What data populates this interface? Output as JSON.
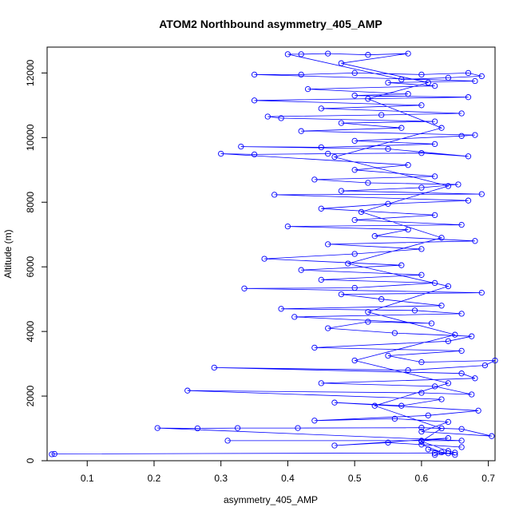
{
  "chart_data": {
    "type": "line",
    "title": "ATOM2 Northbound asymmetry_405_AMP",
    "xlabel": "asymmetry_405_AMP",
    "ylabel": "Altitude (m)",
    "xlim": [
      0.04,
      0.71
    ],
    "ylim": [
      0,
      12800
    ],
    "x_ticks": [
      0.1,
      0.2,
      0.3,
      0.4,
      0.5,
      0.6,
      0.7
    ],
    "x_tick_labels": [
      "0.1",
      "0.2",
      "0.3",
      "0.4",
      "0.5",
      "0.6",
      "0.7"
    ],
    "y_ticks": [
      0,
      2000,
      4000,
      6000,
      8000,
      10000,
      12000
    ],
    "y_tick_labels": [
      "0",
      "2000",
      "4000",
      "6000",
      "8000",
      "10000",
      "12000"
    ],
    "grid": false,
    "marker": "open-circle",
    "line_color": "#0000ff",
    "series": [
      {
        "points": [
          [
            0.047,
            200
          ],
          [
            0.051,
            210
          ],
          [
            0.62,
            240
          ],
          [
            0.64,
            230
          ],
          [
            0.65,
            180
          ],
          [
            0.61,
            350
          ],
          [
            0.63,
            260
          ],
          [
            0.6,
            500
          ],
          [
            0.66,
            420
          ],
          [
            0.55,
            560
          ],
          [
            0.47,
            470
          ],
          [
            0.64,
            700
          ],
          [
            0.6,
            620
          ],
          [
            0.31,
            620
          ],
          [
            0.66,
            620
          ],
          [
            0.205,
            1010
          ],
          [
            0.265,
            1000
          ],
          [
            0.325,
            1010
          ],
          [
            0.415,
            1010
          ],
          [
            0.6,
            1020
          ],
          [
            0.66,
            980
          ],
          [
            0.705,
            760
          ],
          [
            0.6,
            900
          ],
          [
            0.64,
            1200
          ],
          [
            0.56,
            1300
          ],
          [
            0.44,
            1240
          ],
          [
            0.61,
            1400
          ],
          [
            0.685,
            1550
          ],
          [
            0.47,
            1800
          ],
          [
            0.57,
            1700
          ],
          [
            0.63,
            1900
          ],
          [
            0.25,
            2170
          ],
          [
            0.6,
            2100
          ],
          [
            0.675,
            2050
          ],
          [
            0.62,
            2300
          ],
          [
            0.45,
            2400
          ],
          [
            0.68,
            2550
          ],
          [
            0.66,
            2700
          ],
          [
            0.29,
            2880
          ],
          [
            0.58,
            2800
          ],
          [
            0.695,
            2950
          ],
          [
            0.71,
            3100
          ],
          [
            0.6,
            3050
          ],
          [
            0.55,
            3250
          ],
          [
            0.66,
            3400
          ],
          [
            0.44,
            3500
          ],
          [
            0.64,
            3700
          ],
          [
            0.675,
            3850
          ],
          [
            0.56,
            3950
          ],
          [
            0.46,
            4100
          ],
          [
            0.52,
            4300
          ],
          [
            0.615,
            4250
          ],
          [
            0.41,
            4450
          ],
          [
            0.66,
            4550
          ],
          [
            0.59,
            4650
          ],
          [
            0.39,
            4700
          ],
          [
            0.63,
            4800
          ],
          [
            0.54,
            5000
          ],
          [
            0.48,
            5150
          ],
          [
            0.69,
            5200
          ],
          [
            0.335,
            5330
          ],
          [
            0.5,
            5350
          ],
          [
            0.62,
            5500
          ],
          [
            0.45,
            5600
          ],
          [
            0.6,
            5750
          ],
          [
            0.42,
            5900
          ],
          [
            0.57,
            6050
          ],
          [
            0.365,
            6250
          ],
          [
            0.5,
            6400
          ],
          [
            0.6,
            6550
          ],
          [
            0.46,
            6700
          ],
          [
            0.68,
            6800
          ],
          [
            0.53,
            6950
          ],
          [
            0.58,
            7150
          ],
          [
            0.4,
            7250
          ],
          [
            0.66,
            7300
          ],
          [
            0.5,
            7450
          ],
          [
            0.62,
            7600
          ],
          [
            0.45,
            7800
          ],
          [
            0.55,
            7950
          ],
          [
            0.67,
            8050
          ],
          [
            0.38,
            8230
          ],
          [
            0.69,
            8250
          ],
          [
            0.48,
            8350
          ],
          [
            0.6,
            8450
          ],
          [
            0.655,
            8550
          ],
          [
            0.52,
            8600
          ],
          [
            0.44,
            8700
          ],
          [
            0.62,
            8800
          ],
          [
            0.5,
            9000
          ],
          [
            0.58,
            9150
          ],
          [
            0.3,
            9500
          ],
          [
            0.35,
            9480
          ],
          [
            0.46,
            9500
          ],
          [
            0.6,
            9520
          ],
          [
            0.67,
            9420
          ],
          [
            0.55,
            9650
          ],
          [
            0.33,
            9720
          ],
          [
            0.45,
            9700
          ],
          [
            0.62,
            9800
          ],
          [
            0.5,
            9900
          ],
          [
            0.66,
            10050
          ],
          [
            0.68,
            10080
          ],
          [
            0.42,
            10200
          ],
          [
            0.57,
            10300
          ],
          [
            0.48,
            10450
          ],
          [
            0.62,
            10500
          ],
          [
            0.39,
            10600
          ],
          [
            0.37,
            10650
          ],
          [
            0.54,
            10700
          ],
          [
            0.66,
            10750
          ],
          [
            0.45,
            10900
          ],
          [
            0.6,
            11000
          ],
          [
            0.35,
            11150
          ],
          [
            0.67,
            11250
          ],
          [
            0.5,
            11300
          ],
          [
            0.58,
            11350
          ],
          [
            0.43,
            11500
          ],
          [
            0.62,
            11600
          ],
          [
            0.55,
            11700
          ],
          [
            0.68,
            11750
          ],
          [
            0.35,
            11950
          ],
          [
            0.42,
            11950
          ],
          [
            0.5,
            12000
          ],
          [
            0.6,
            11950
          ],
          [
            0.67,
            12000
          ],
          [
            0.69,
            11900
          ],
          [
            0.64,
            11850
          ],
          [
            0.57,
            11800
          ],
          [
            0.4,
            12580
          ],
          [
            0.42,
            12580
          ],
          [
            0.46,
            12600
          ],
          [
            0.52,
            12560
          ],
          [
            0.58,
            12600
          ],
          [
            0.48,
            12300
          ],
          [
            0.61,
            11700
          ],
          [
            0.52,
            11200
          ],
          [
            0.63,
            10300
          ],
          [
            0.47,
            9400
          ],
          [
            0.64,
            8500
          ],
          [
            0.51,
            7700
          ],
          [
            0.63,
            6900
          ],
          [
            0.49,
            6100
          ],
          [
            0.64,
            5400
          ],
          [
            0.52,
            4600
          ],
          [
            0.65,
            3900
          ],
          [
            0.5,
            3100
          ],
          [
            0.64,
            2400
          ],
          [
            0.53,
            1700
          ],
          [
            0.63,
            1000
          ],
          [
            0.6,
            600
          ],
          [
            0.64,
            300
          ],
          [
            0.65,
            250
          ],
          [
            0.62,
            180
          ]
        ]
      }
    ]
  }
}
